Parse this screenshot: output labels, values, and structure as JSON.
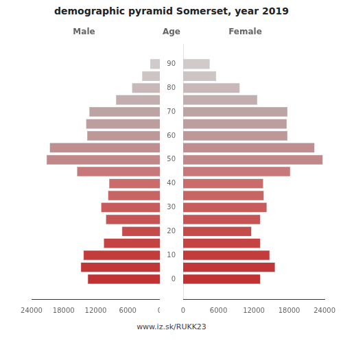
{
  "chart_data": {
    "type": "bar",
    "orientation": "horizontal",
    "title": "demographic pyramid Somerset, year 2019",
    "y_label": "Age",
    "footer": "www.iz.sk/RUKK23",
    "y": [
      90,
      85,
      80,
      75,
      70,
      65,
      60,
      55,
      50,
      45,
      40,
      35,
      30,
      25,
      20,
      15,
      10,
      5,
      0
    ],
    "series": [
      {
        "name": "Male",
        "values": [
          1800,
          3300,
          5200,
          8200,
          13200,
          13800,
          13600,
          20600,
          21200,
          15500,
          9500,
          9700,
          11000,
          10100,
          7100,
          10500,
          14300,
          14800,
          13500
        ]
      },
      {
        "name": "Female",
        "values": [
          4500,
          5600,
          9600,
          12600,
          17700,
          17600,
          17700,
          22300,
          23700,
          18200,
          13600,
          13700,
          14200,
          13100,
          11600,
          13100,
          14700,
          15600,
          13100
        ]
      }
    ],
    "colors": [
      "#d0caca",
      "#cdc4c4",
      "#c8b8b8",
      "#c2aeae",
      "#bda4a4",
      "#bc9e9e",
      "#be9898",
      "#c08e8e",
      "#c08888",
      "#c87878",
      "#ca6c6c",
      "#c86464",
      "#c75c5c",
      "#c75454",
      "#c64c4c",
      "#c44444",
      "#c23c3c",
      "#c13636",
      "#c03232"
    ],
    "xlim": [
      0,
      24000
    ],
    "xticks": [
      0,
      6000,
      12000,
      18000,
      24000
    ],
    "ylim": [
      -3,
      93
    ],
    "yticks": [
      0,
      10,
      20,
      30,
      40,
      50,
      60,
      70,
      80,
      90
    ],
    "grid": false
  }
}
